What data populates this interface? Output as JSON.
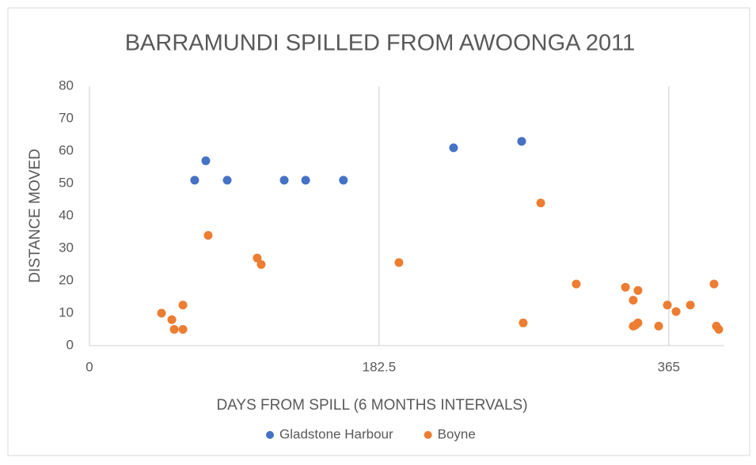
{
  "chart_data": {
    "type": "scatter",
    "title": "BARRAMUNDI SPILLED FROM AWOONGA  2011",
    "x_label": "DAYS FROM SPILL (6 MONTHS INTERVALS)",
    "y_label": "DISTANCE MOVED",
    "xlim": [
      0,
      400
    ],
    "xticks": [
      0,
      182.5,
      365
    ],
    "ylim": [
      0,
      80
    ],
    "yticks": [
      0,
      10,
      20,
      30,
      40,
      50,
      60,
      70,
      80
    ],
    "grid": "x",
    "legend": "bottom",
    "series": [
      {
        "name": "Gladstone Harbour",
        "color": "#4472c4",
        "x": [
          66.3,
          73.3,
          86.8,
          122.7,
          136.2,
          160,
          229.4,
          272.3
        ],
        "values": [
          51,
          57,
          51,
          51,
          51,
          51,
          61,
          63
        ]
      },
      {
        "name": "Boyne",
        "color": "#ed7d31",
        "x": [
          45.4,
          51.9,
          53.4,
          58.9,
          58.9,
          74.8,
          105.7,
          108.2,
          195,
          273.3,
          284.3,
          306.7,
          337.7,
          342.6,
          345.6,
          342.6,
          344,
          345.6,
          358.6,
          364.1,
          369.6,
          378.6,
          393.5,
          395,
          396.5
        ],
        "values": [
          10,
          8,
          5,
          5,
          12.5,
          34,
          27,
          25,
          25.6,
          7,
          44,
          19,
          18,
          14,
          17,
          6,
          6.3,
          7,
          6,
          12.5,
          10.5,
          12.5,
          19,
          6,
          5
        ]
      }
    ]
  }
}
